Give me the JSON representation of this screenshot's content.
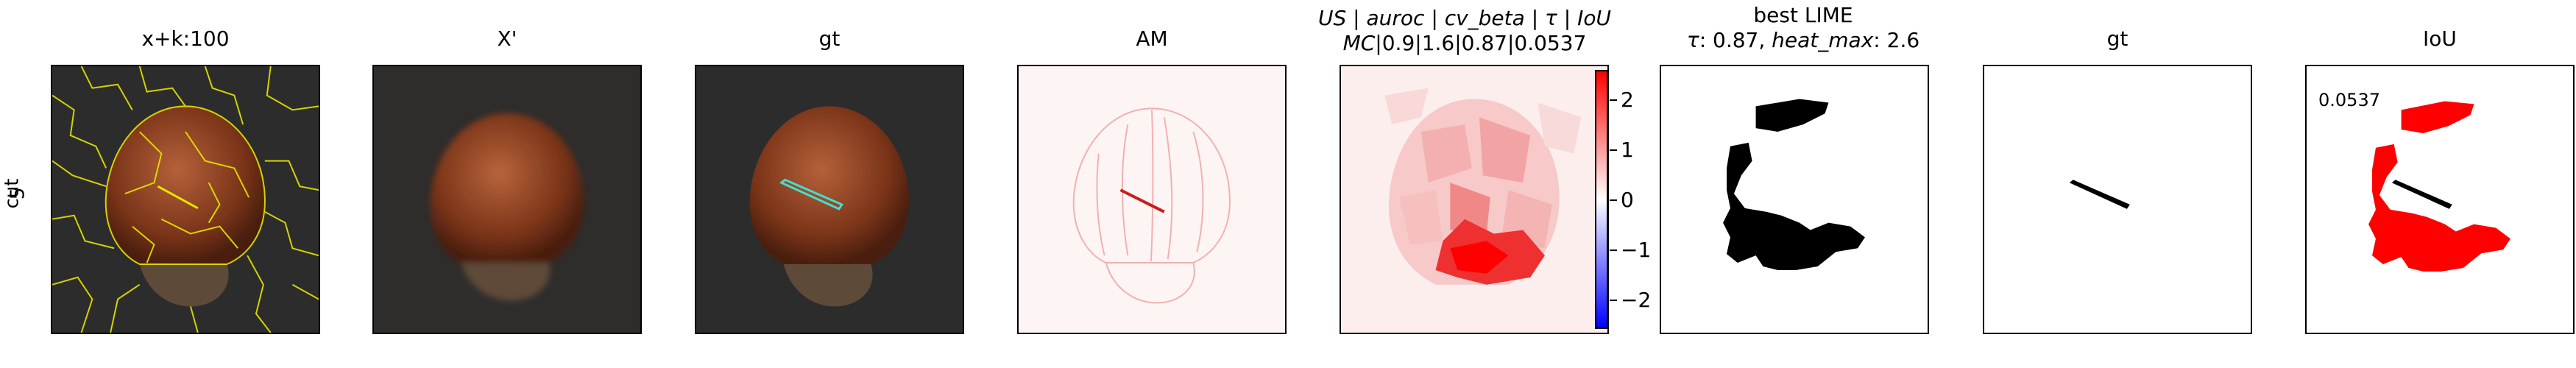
{
  "row_label": {
    "line1": "cut",
    "line2": "5"
  },
  "panels": [
    {
      "title": "x+k:100"
    },
    {
      "title": "X'"
    },
    {
      "title": "gt"
    },
    {
      "title": "AM"
    },
    {
      "title_line1_parts": [
        "US",
        " | ",
        "auroc",
        " | ",
        "cv_beta",
        " | ",
        "τ",
        " | ",
        "IoU"
      ],
      "title_line2_parts": [
        "MC",
        "|0.9|1.6|0.87|0.0537"
      ]
    },
    {
      "title_line1": "best LIME",
      "title_line2_parts": [
        "τ",
        ": 0.87, ",
        "heat_max",
        ": 2.6"
      ]
    },
    {
      "title": "gt"
    },
    {
      "title": "IoU",
      "annotation": "0.0537"
    }
  ],
  "colorbar": {
    "ticks": [
      "2",
      "1",
      "0",
      "−1",
      "−2"
    ]
  },
  "colors": {
    "segment_boundary": "#e6e600",
    "gt_outline": "#40e0d0",
    "heat_red": "#ff0000",
    "mask_black": "#000000"
  }
}
